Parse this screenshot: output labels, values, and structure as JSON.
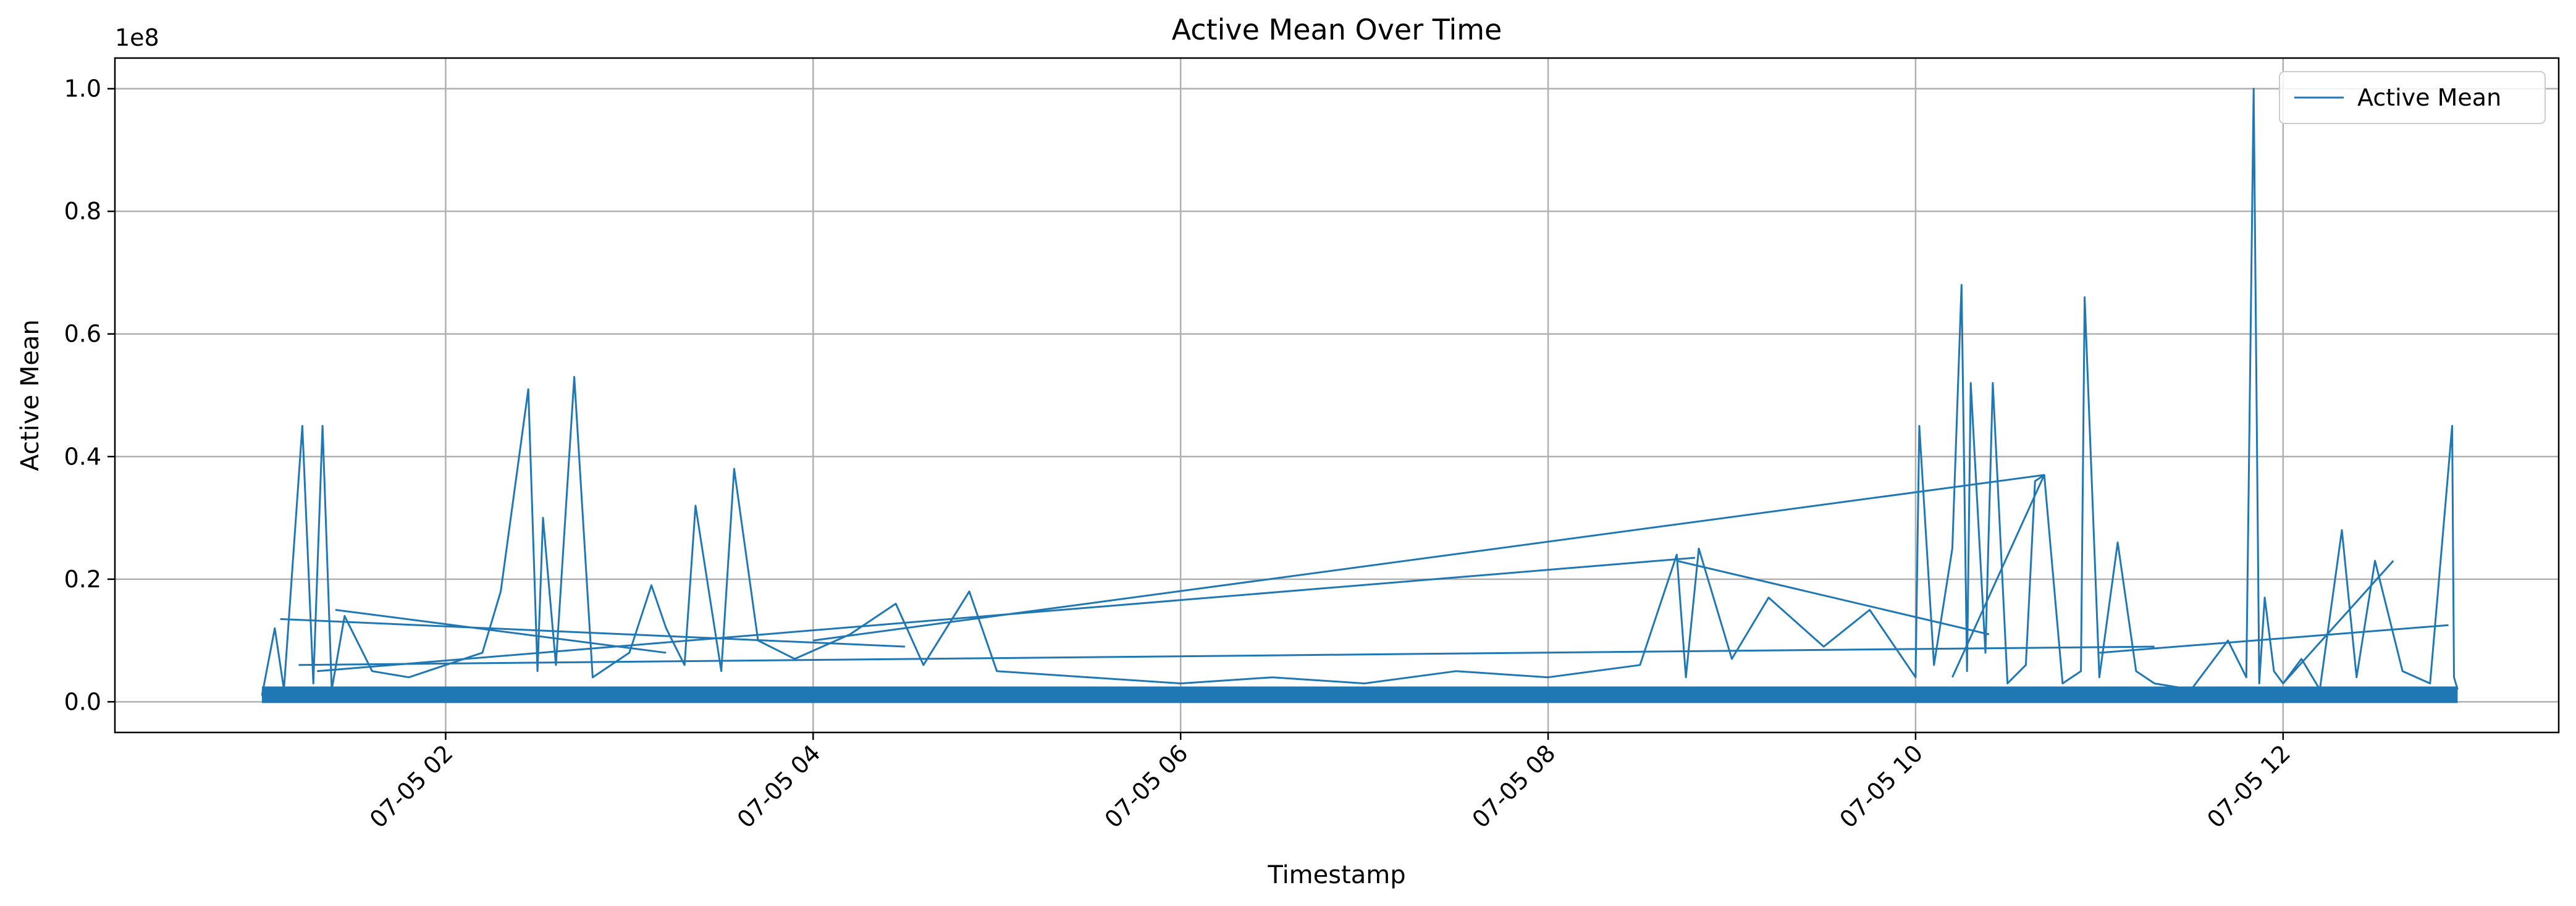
{
  "chart_data": {
    "type": "line",
    "title": "Active Mean Over Time",
    "xlabel": "Timestamp",
    "ylabel": "Active Mean",
    "y_multiplier_label": "1e8",
    "y_scale": 100000000,
    "x_unit": "hours on 07-05",
    "xlim": [
      0.2,
      13.5
    ],
    "ylim": [
      -0.05,
      1.05
    ],
    "xticks": [
      {
        "value": 2,
        "label": "07-05 02"
      },
      {
        "value": 4,
        "label": "07-05 04"
      },
      {
        "value": 6,
        "label": "07-05 06"
      },
      {
        "value": 8,
        "label": "07-05 08"
      },
      {
        "value": 10,
        "label": "07-05 10"
      },
      {
        "value": 12,
        "label": "07-05 12"
      }
    ],
    "yticks": [
      {
        "value": 0.0,
        "label": "0.0"
      },
      {
        "value": 0.2,
        "label": "0.2"
      },
      {
        "value": 0.4,
        "label": "0.4"
      },
      {
        "value": 0.6,
        "label": "0.6"
      },
      {
        "value": 0.8,
        "label": "0.8"
      },
      {
        "value": 1.0,
        "label": "1.0"
      }
    ],
    "grid": true,
    "legend_position": "top-right",
    "series": [
      {
        "name": "Active Mean",
        "color": "#1f77b4",
        "x": [
          1.0,
          1.07,
          1.12,
          1.22,
          1.28,
          1.33,
          1.38,
          1.45,
          1.6,
          1.8,
          2.0,
          2.2,
          2.3,
          2.45,
          2.5,
          2.53,
          2.6,
          2.7,
          2.8,
          3.0,
          3.12,
          3.2,
          3.3,
          3.36,
          3.5,
          3.57,
          3.7,
          3.9,
          4.2,
          4.45,
          4.6,
          4.85,
          5.0,
          5.5,
          6.0,
          6.5,
          7.0,
          7.5,
          8.0,
          8.5,
          8.7,
          8.75,
          8.82,
          9.0,
          9.2,
          9.5,
          9.75,
          10.0,
          10.02,
          10.1,
          10.2,
          10.25,
          10.28,
          10.3,
          10.38,
          10.42,
          10.5,
          10.6,
          10.65,
          10.7,
          10.8,
          10.9,
          10.92,
          11.0,
          11.1,
          11.2,
          11.3,
          11.5,
          11.7,
          11.8,
          11.84,
          11.87,
          11.9,
          11.95,
          12.0,
          12.1,
          12.2,
          12.32,
          12.4,
          12.5,
          12.65,
          12.8,
          12.92,
          12.93,
          12.95
        ],
        "y": [
          0.01,
          0.12,
          0.02,
          0.45,
          0.03,
          0.45,
          0.02,
          0.14,
          0.05,
          0.04,
          0.06,
          0.08,
          0.18,
          0.51,
          0.05,
          0.3,
          0.06,
          0.53,
          0.04,
          0.08,
          0.19,
          0.12,
          0.06,
          0.32,
          0.05,
          0.38,
          0.1,
          0.07,
          0.11,
          0.16,
          0.06,
          0.18,
          0.05,
          0.04,
          0.03,
          0.04,
          0.03,
          0.05,
          0.04,
          0.06,
          0.24,
          0.04,
          0.25,
          0.07,
          0.17,
          0.09,
          0.15,
          0.04,
          0.45,
          0.06,
          0.25,
          0.68,
          0.05,
          0.52,
          0.08,
          0.52,
          0.03,
          0.06,
          0.36,
          0.37,
          0.03,
          0.05,
          0.66,
          0.04,
          0.26,
          0.05,
          0.03,
          0.02,
          0.1,
          0.04,
          1.0,
          0.03,
          0.17,
          0.05,
          0.03,
          0.07,
          0.02,
          0.28,
          0.04,
          0.23,
          0.05,
          0.03,
          0.45,
          0.04,
          0.02
        ]
      }
    ]
  }
}
